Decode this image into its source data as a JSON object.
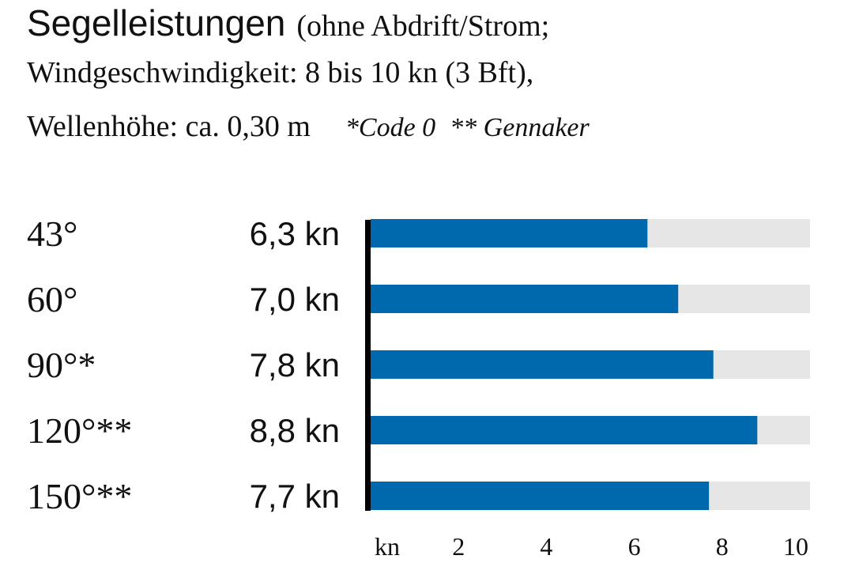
{
  "header": {
    "title": "Segelleistungen",
    "title_rest": "(ohne Abdrift/Strom;",
    "line2": "Windgeschwindigkeit: 8 bis 10 kn (3 Bft),",
    "line3": "Wellenhöhe: ca. 0,30 m",
    "note_code0": "*Code 0",
    "note_gennaker": "** Gennaker"
  },
  "chart_data": {
    "type": "bar",
    "orientation": "horizontal",
    "categories": [
      "43°",
      "60°",
      "90°*",
      "120°**",
      "150°**"
    ],
    "value_labels": [
      "6,3 kn",
      "7,0 kn",
      "7,8 kn",
      "8,8 kn",
      "7,7 kn"
    ],
    "values": [
      6.3,
      7.0,
      7.8,
      8.8,
      7.7
    ],
    "xlim": [
      0,
      10
    ],
    "x_unit": "kn",
    "ticks": [
      2,
      4,
      6,
      8,
      10
    ],
    "colors": {
      "bar": "#0068ac",
      "track": "#e6e6e6",
      "axis": "#000000"
    }
  }
}
